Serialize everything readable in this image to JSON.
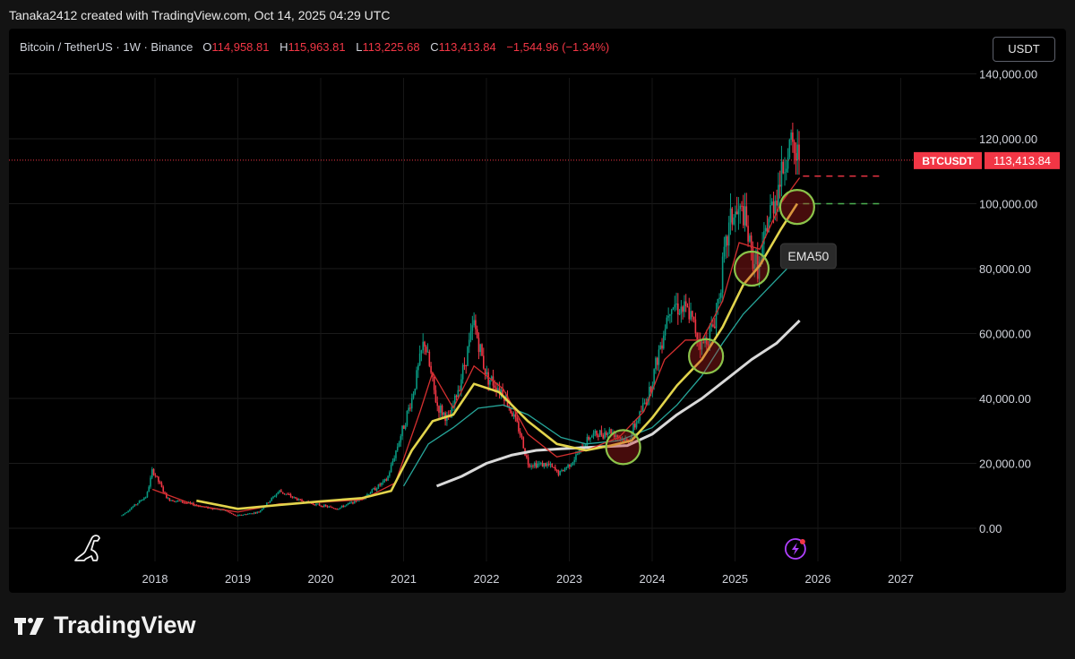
{
  "credit": "Tanaka2412 created with TradingView.com, Oct 14, 2025 04:29 UTC",
  "legend": {
    "symbol": "Bitcoin / TetherUS · 1W · Binance",
    "o_label": "O",
    "o": "114,958.81",
    "h_label": "H",
    "h": "115,963.81",
    "l_label": "L",
    "l": "113,225.68",
    "c_label": "C",
    "c": "113,413.84",
    "change": "−1,544.96 (−1.34%)"
  },
  "currency_button": "USDT",
  "price_tag": {
    "symbol": "BTCUSDT",
    "value": "113,413.84",
    "price": 113413.84
  },
  "ema_label": "EMA50",
  "brand": "TradingView",
  "colors": {
    "bull": "#089981",
    "bear": "#f23645",
    "ema50": "#e2d44c",
    "ema_red": "#d32f2f",
    "ema_teal": "#26a69a",
    "ema_white": "#d9d9d9",
    "circle": "#8bc34a"
  },
  "chart_data": {
    "type": "candlestick",
    "x_ticks": [
      "2018",
      "2019",
      "2020",
      "2021",
      "2022",
      "2023",
      "2024",
      "2025",
      "2026",
      "2027"
    ],
    "y_ticks": [
      "140,000.00",
      "120,000.00",
      "100,000.00",
      "80,000.00",
      "60,000.00",
      "40,000.00",
      "20,000.00",
      "0.00"
    ],
    "ylim": [
      0,
      140000
    ],
    "xlim": [
      2017.0,
      2027.0
    ],
    "close_series": [
      [
        2017.6,
        4000
      ],
      [
        2017.9,
        10000
      ],
      [
        2017.97,
        18000
      ],
      [
        2018.15,
        9000
      ],
      [
        2018.35,
        8000
      ],
      [
        2018.6,
        6500
      ],
      [
        2018.85,
        5500
      ],
      [
        2018.97,
        3800
      ],
      [
        2019.25,
        5000
      ],
      [
        2019.5,
        11500
      ],
      [
        2019.75,
        8500
      ],
      [
        2019.97,
        7200
      ],
      [
        2020.2,
        6000
      ],
      [
        2020.5,
        9300
      ],
      [
        2020.8,
        15000
      ],
      [
        2020.97,
        29000
      ],
      [
        2021.1,
        40000
      ],
      [
        2021.25,
        58000
      ],
      [
        2021.4,
        38000
      ],
      [
        2021.55,
        33000
      ],
      [
        2021.7,
        47000
      ],
      [
        2021.85,
        63000
      ],
      [
        2022.0,
        47000
      ],
      [
        2022.2,
        42000
      ],
      [
        2022.4,
        30000
      ],
      [
        2022.5,
        20000
      ],
      [
        2022.75,
        19500
      ],
      [
        2022.88,
        16800
      ],
      [
        2023.05,
        21000
      ],
      [
        2023.25,
        28500
      ],
      [
        2023.5,
        30000
      ],
      [
        2023.7,
        26500
      ],
      [
        2023.85,
        35000
      ],
      [
        2023.97,
        42500
      ],
      [
        2024.15,
        62000
      ],
      [
        2024.22,
        70000
      ],
      [
        2024.45,
        66000
      ],
      [
        2024.6,
        56000
      ],
      [
        2024.75,
        63000
      ],
      [
        2024.85,
        80000
      ],
      [
        2024.95,
        96000
      ],
      [
        2025.1,
        97000
      ],
      [
        2025.2,
        84000
      ],
      [
        2025.3,
        80000
      ],
      [
        2025.4,
        95000
      ],
      [
        2025.55,
        108000
      ],
      [
        2025.65,
        118000
      ],
      [
        2025.72,
        115000
      ],
      [
        2025.78,
        113413.84
      ]
    ],
    "ema50": [
      [
        2018.5,
        8500
      ],
      [
        2019.0,
        6000
      ],
      [
        2019.5,
        7200
      ],
      [
        2020.0,
        8300
      ],
      [
        2020.5,
        9300
      ],
      [
        2020.85,
        11500
      ],
      [
        2021.1,
        24000
      ],
      [
        2021.35,
        33000
      ],
      [
        2021.6,
        35000
      ],
      [
        2021.85,
        44500
      ],
      [
        2022.15,
        42000
      ],
      [
        2022.5,
        33000
      ],
      [
        2022.85,
        26000
      ],
      [
        2023.2,
        24000
      ],
      [
        2023.5,
        25500
      ],
      [
        2023.75,
        27000
      ],
      [
        2024.0,
        34000
      ],
      [
        2024.3,
        44000
      ],
      [
        2024.6,
        52000
      ],
      [
        2024.85,
        62000
      ],
      [
        2025.1,
        75000
      ],
      [
        2025.3,
        81000
      ],
      [
        2025.55,
        92000
      ],
      [
        2025.75,
        100000
      ]
    ],
    "ema_red": [
      [
        2017.97,
        12000
      ],
      [
        2018.5,
        7000
      ],
      [
        2019.0,
        5000
      ],
      [
        2019.5,
        7500
      ],
      [
        2020.0,
        8000
      ],
      [
        2020.5,
        8800
      ],
      [
        2020.9,
        14000
      ],
      [
        2021.2,
        36000
      ],
      [
        2021.35,
        48000
      ],
      [
        2021.6,
        37000
      ],
      [
        2021.85,
        50000
      ],
      [
        2022.2,
        43000
      ],
      [
        2022.5,
        29000
      ],
      [
        2022.85,
        22000
      ],
      [
        2023.2,
        24000
      ],
      [
        2023.6,
        28000
      ],
      [
        2023.9,
        36000
      ],
      [
        2024.15,
        52000
      ],
      [
        2024.4,
        58000
      ],
      [
        2024.6,
        58000
      ],
      [
        2024.85,
        70000
      ],
      [
        2025.05,
        88000
      ],
      [
        2025.3,
        86000
      ],
      [
        2025.55,
        100000
      ],
      [
        2025.78,
        108000
      ]
    ],
    "ema_teal": [
      [
        2021.0,
        13000
      ],
      [
        2021.3,
        26000
      ],
      [
        2021.6,
        31000
      ],
      [
        2021.9,
        37000
      ],
      [
        2022.2,
        38000
      ],
      [
        2022.5,
        35000
      ],
      [
        2022.9,
        28000
      ],
      [
        2023.2,
        26000
      ],
      [
        2023.6,
        27000
      ],
      [
        2024.0,
        31000
      ],
      [
        2024.3,
        38000
      ],
      [
        2024.6,
        47000
      ],
      [
        2024.85,
        57000
      ],
      [
        2025.1,
        66000
      ],
      [
        2025.4,
        74000
      ],
      [
        2025.78,
        84000
      ]
    ],
    "ema_white": [
      [
        2021.4,
        13000
      ],
      [
        2021.7,
        16000
      ],
      [
        2022.0,
        20000
      ],
      [
        2022.3,
        22500
      ],
      [
        2022.6,
        24000
      ],
      [
        2022.9,
        24500
      ],
      [
        2023.3,
        25000
      ],
      [
        2023.7,
        25500
      ],
      [
        2024.0,
        29000
      ],
      [
        2024.3,
        35000
      ],
      [
        2024.6,
        40000
      ],
      [
        2024.9,
        46000
      ],
      [
        2025.2,
        52000
      ],
      [
        2025.5,
        57000
      ],
      [
        2025.78,
        64000
      ]
    ],
    "circles": [
      [
        2023.65,
        25000
      ],
      [
        2024.65,
        53000
      ],
      [
        2025.2,
        80000
      ],
      [
        2025.75,
        99000
      ]
    ],
    "levels": [
      {
        "price": 108500,
        "color": "#f23645"
      },
      {
        "price": 100000,
        "color": "#4caf50"
      }
    ]
  }
}
